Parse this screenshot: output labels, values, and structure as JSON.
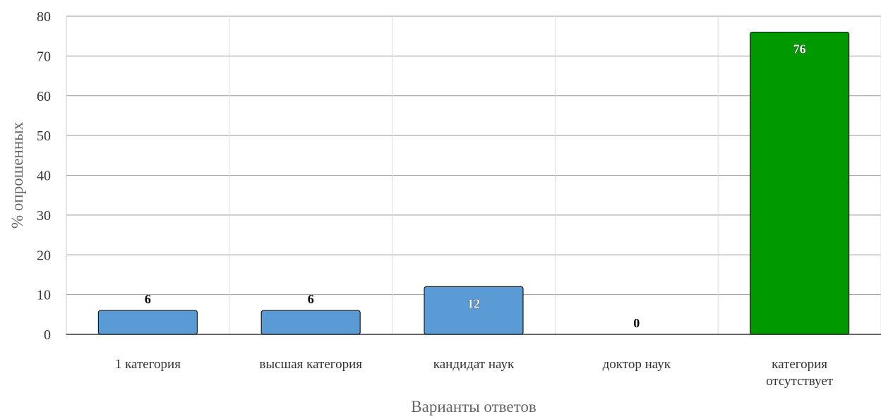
{
  "chart_data": {
    "type": "bar",
    "title": "",
    "xlabel": "Варианты ответов",
    "ylabel": "% опрошенных",
    "ylim": [
      0,
      80
    ],
    "yticks": [
      0,
      10,
      20,
      30,
      40,
      50,
      60,
      70,
      80
    ],
    "grid": true,
    "categories": [
      [
        "1 категория"
      ],
      [
        "высшая категория"
      ],
      [
        "кандидат наук"
      ],
      [
        "доктор наук"
      ],
      [
        "категория",
        "отсутствует"
      ]
    ],
    "values": [
      6,
      6,
      12,
      0,
      76
    ],
    "colors": [
      "#5b9bd5",
      "#5b9bd5",
      "#5b9bd5",
      "#5b9bd5",
      "#009900"
    ],
    "data_labels": [
      "6",
      "6",
      "12",
      "0",
      "76"
    ]
  }
}
